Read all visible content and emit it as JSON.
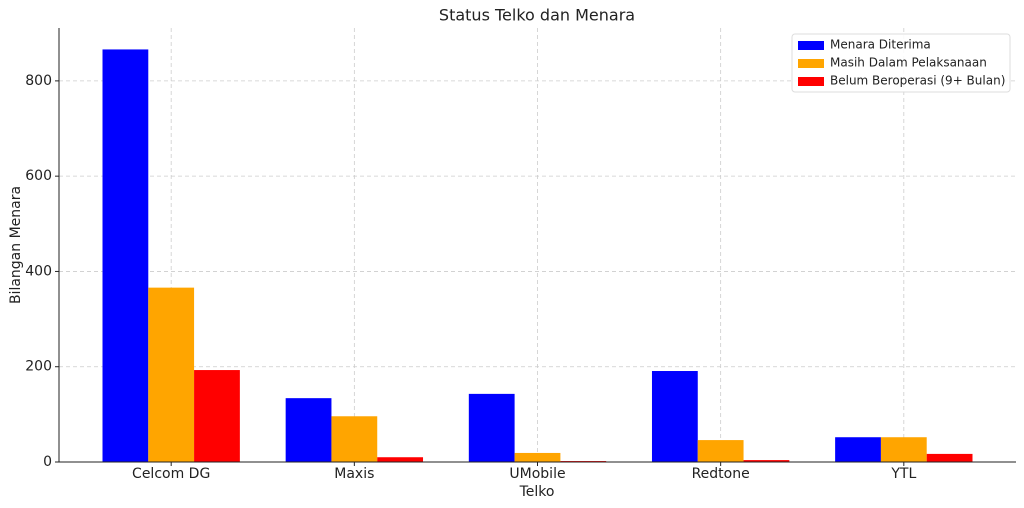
{
  "chart_data": {
    "type": "bar",
    "title": "Status Telko dan Menara",
    "x_label": "Telko",
    "y_label": "Bilangan Menara",
    "categories": [
      "Celcom DG",
      "Maxis",
      "UMobile",
      "Redtone",
      "YTL"
    ],
    "series": [
      {
        "name": "Menara Diterima",
        "color": "#0000ff",
        "values": [
          866,
          134,
          143,
          191,
          52
        ]
      },
      {
        "name": "Masih Dalam Pelaksanaan",
        "color": "#ffa500",
        "values": [
          366,
          96,
          19,
          46,
          52
        ]
      },
      {
        "name": "Belum Beroperasi (9+ Bulan)",
        "color": "#ff0000",
        "values": [
          193,
          10,
          2,
          4,
          17
        ]
      }
    ],
    "ylim": [
      0,
      911
    ],
    "yticks": [
      0,
      200,
      400,
      600,
      800
    ],
    "grid": true,
    "legend": "upper right"
  }
}
